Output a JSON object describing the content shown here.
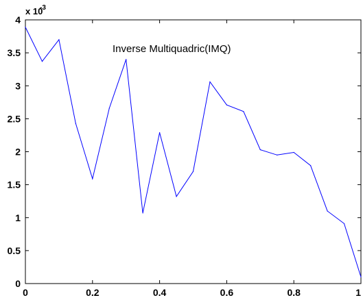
{
  "chart_data": {
    "type": "line",
    "annotation": "Inverse Multiquadric(IMQ)",
    "y_multiplier": "x 10",
    "y_multiplier_exponent": "-3",
    "xlim": [
      0,
      1
    ],
    "ylim": [
      0,
      4
    ],
    "x_ticks": [
      "0",
      "0.2",
      "0.4",
      "0.6",
      "0.8",
      "1"
    ],
    "x_tick_values": [
      0,
      0.2,
      0.4,
      0.6,
      0.8,
      1
    ],
    "y_ticks": [
      "0",
      "0.5",
      "1",
      "1.5",
      "2",
      "2.5",
      "3",
      "3.5",
      "4"
    ],
    "y_tick_values": [
      0,
      0.5,
      1,
      1.5,
      2,
      2.5,
      3,
      3.5,
      4
    ],
    "grid": false,
    "series": [
      {
        "color": "#0000ff",
        "x": [
          0,
          0.05,
          0.1,
          0.15,
          0.2,
          0.25,
          0.3,
          0.35,
          0.4,
          0.45,
          0.5,
          0.55,
          0.6,
          0.65,
          0.7,
          0.75,
          0.8,
          0.85,
          0.9,
          0.95,
          1
        ],
        "y": [
          3.89,
          3.37,
          3.7,
          2.43,
          1.59,
          2.66,
          3.4,
          1.07,
          2.29,
          1.32,
          1.7,
          3.06,
          2.71,
          2.61,
          2.03,
          1.95,
          1.99,
          1.79,
          1.1,
          0.91,
          0.1
        ]
      }
    ]
  }
}
